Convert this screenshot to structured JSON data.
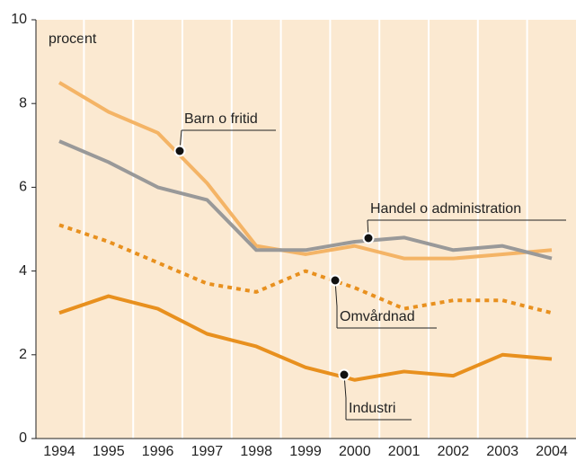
{
  "chart_data": {
    "type": "line",
    "y_label": "procent",
    "categories": [
      "1994",
      "1995",
      "1996",
      "1997",
      "1998",
      "1999",
      "2000",
      "2001",
      "2002",
      "2003",
      "2004"
    ],
    "ylim": [
      0,
      10
    ],
    "yticks": [
      0,
      2,
      4,
      6,
      8,
      10
    ],
    "series": [
      {
        "name": "Barn o fritid",
        "color": "#f4b466",
        "dash": false,
        "values": [
          8.5,
          7.8,
          7.3,
          6.1,
          4.6,
          4.4,
          4.6,
          4.3,
          4.3,
          4.4,
          4.5
        ]
      },
      {
        "name": "Handel o administration",
        "color": "#999999",
        "dash": false,
        "values": [
          7.1,
          6.6,
          6.0,
          5.7,
          4.5,
          4.5,
          4.7,
          4.8,
          4.5,
          4.6,
          4.3
        ]
      },
      {
        "name": "Omvårdnad",
        "color": "#e8901e",
        "dash": true,
        "values": [
          5.1,
          4.7,
          4.2,
          3.7,
          3.5,
          4.0,
          3.6,
          3.1,
          3.3,
          3.3,
          3.0
        ]
      },
      {
        "name": "Industri",
        "color": "#e8901e",
        "dash": false,
        "values": [
          3.0,
          3.4,
          3.1,
          2.5,
          2.2,
          1.7,
          1.4,
          1.6,
          1.5,
          2.0,
          1.9
        ]
      }
    ]
  }
}
